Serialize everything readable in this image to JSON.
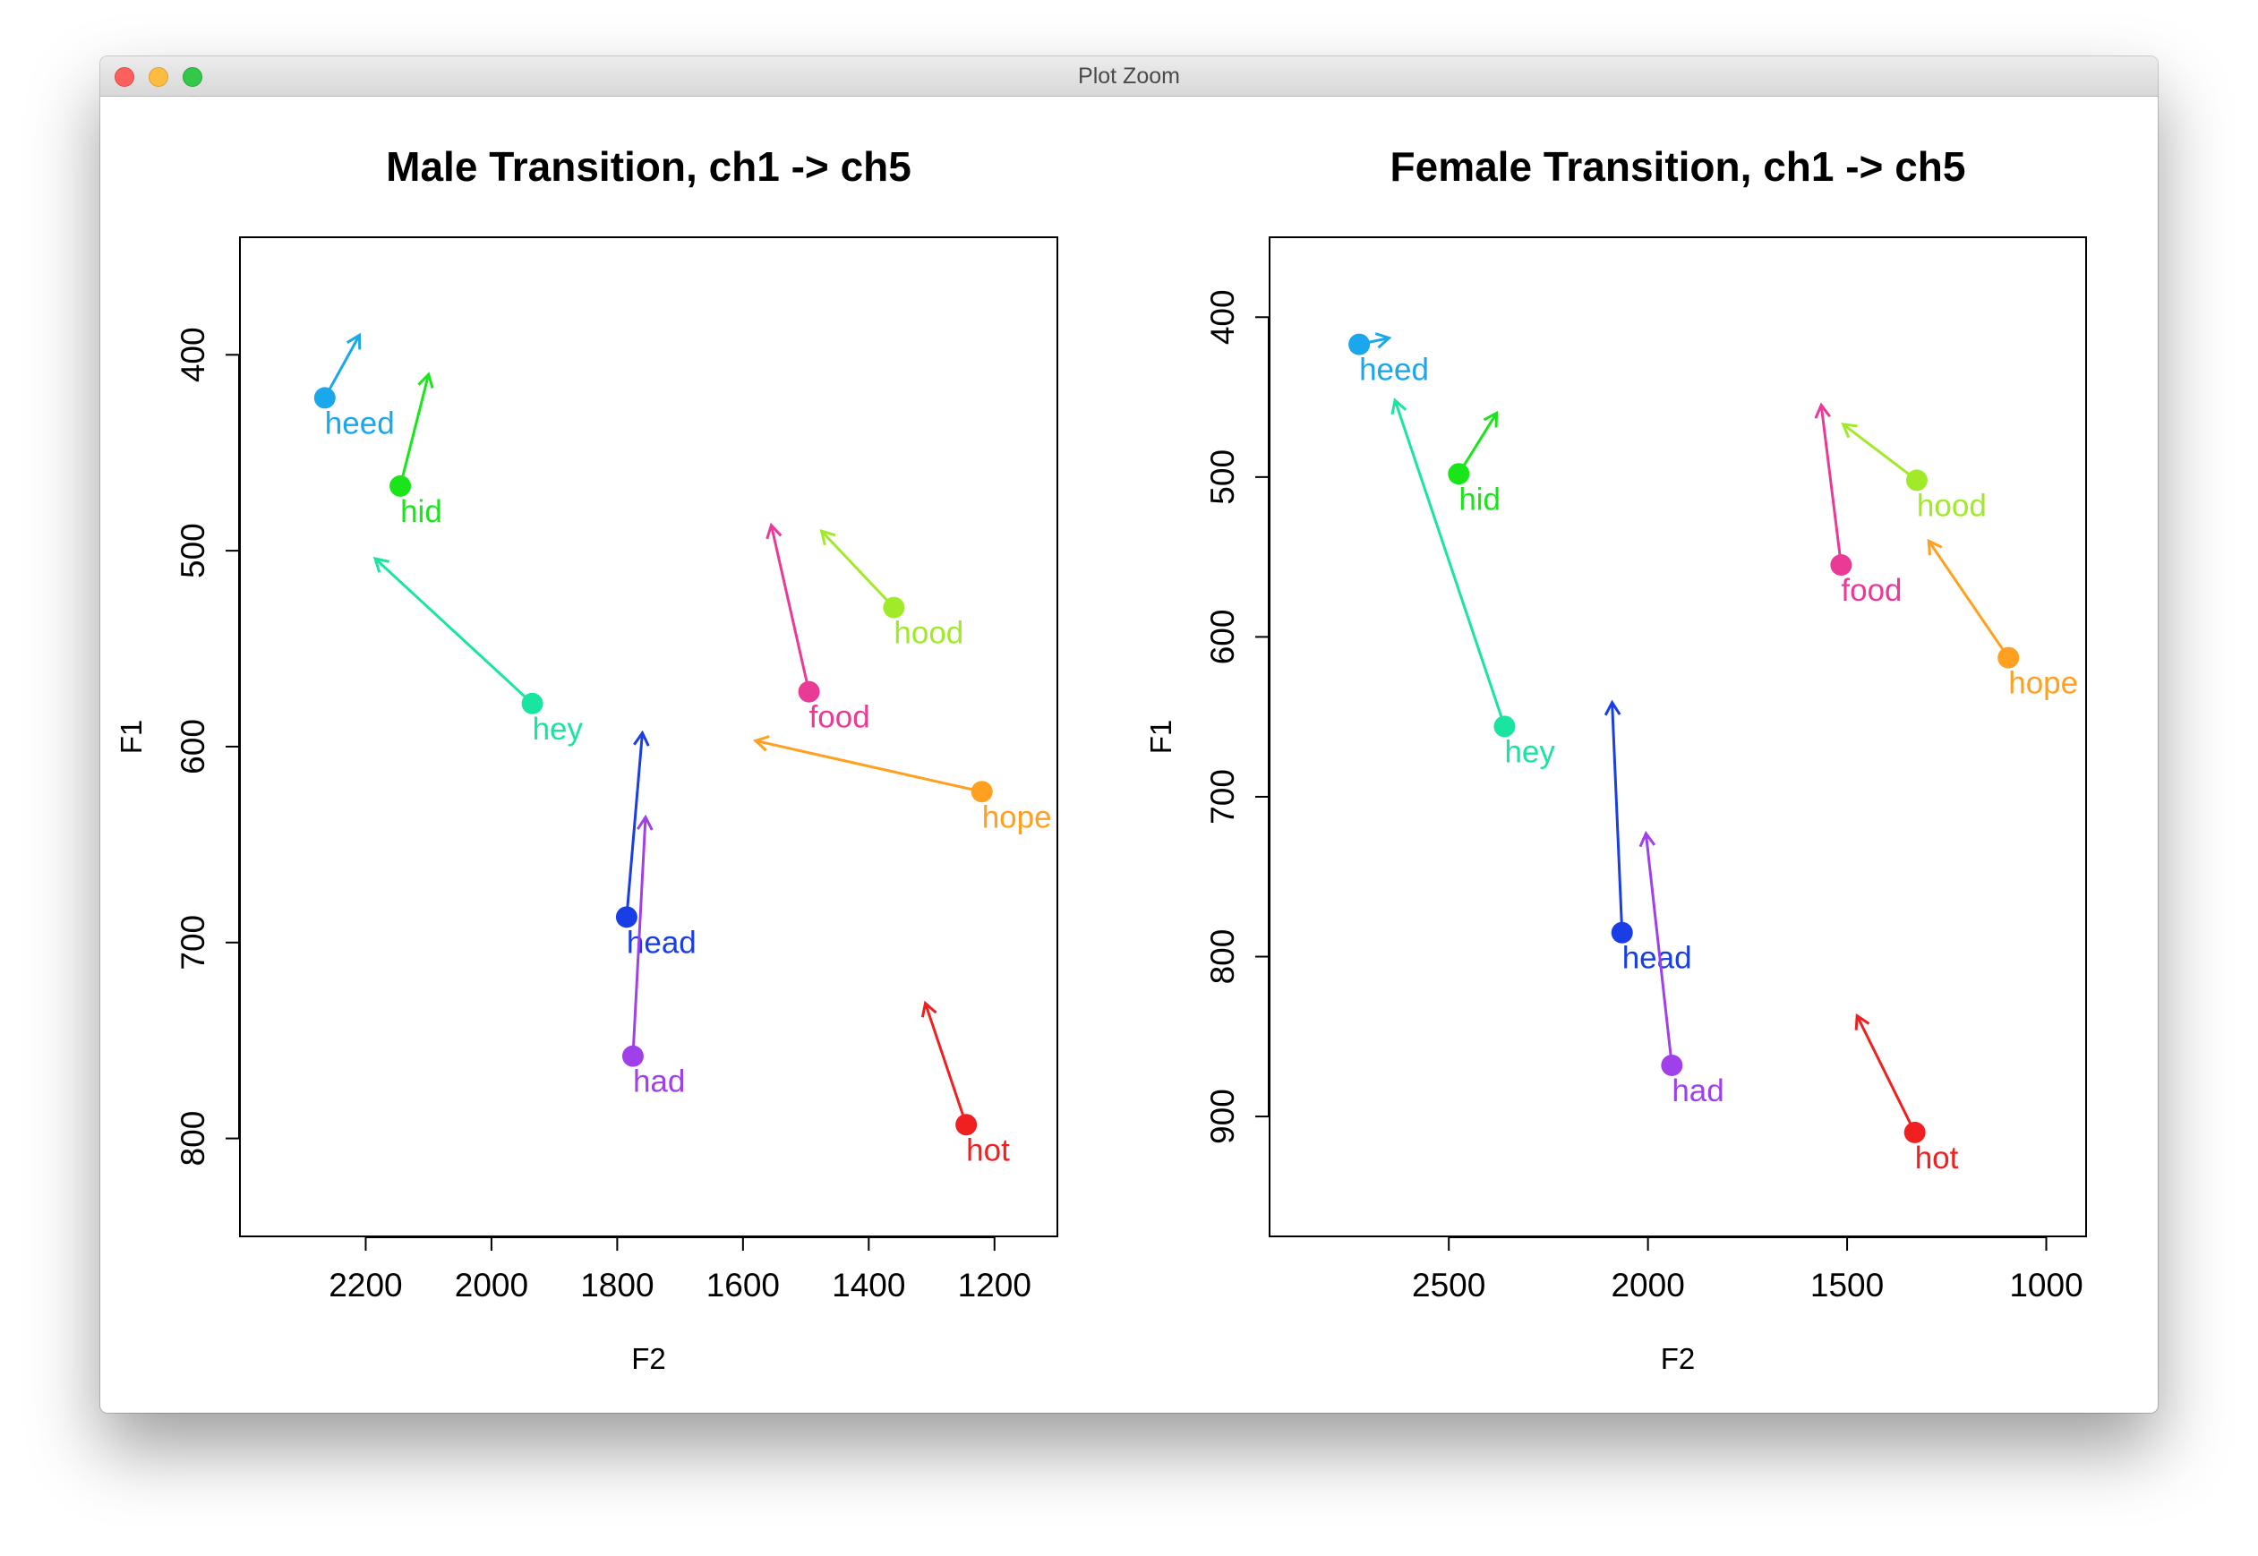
{
  "window": {
    "title": "Plot Zoom"
  },
  "colors": {
    "heed": "#1aa7ec",
    "hid": "#1ae51a",
    "hey": "#1ae5a0",
    "head": "#1a3ee5",
    "had": "#a040ea",
    "food": "#ea3a96",
    "hood": "#a0ea2a",
    "hope": "#ffa020",
    "hot": "#f02020"
  },
  "chart_data": [
    {
      "type": "scatter",
      "title": "Male Transition, ch1 -> ch5",
      "xlabel": "F2",
      "ylabel": "F1",
      "xlim": [
        2400,
        1100
      ],
      "ylim": [
        850,
        340
      ],
      "x_reversed": true,
      "y_reversed": true,
      "xticks": [
        2200,
        2000,
        1800,
        1600,
        1400,
        1200
      ],
      "yticks": [
        400,
        500,
        600,
        700,
        800
      ],
      "points": [
        {
          "label": "heed",
          "x": 2265,
          "y": 422,
          "x_end": 2210,
          "y_end": 390
        },
        {
          "label": "hid",
          "x": 2145,
          "y": 467,
          "x_end": 2100,
          "y_end": 410
        },
        {
          "label": "hey",
          "x": 1935,
          "y": 578,
          "x_end": 2185,
          "y_end": 504
        },
        {
          "label": "head",
          "x": 1785,
          "y": 687,
          "x_end": 1760,
          "y_end": 593
        },
        {
          "label": "had",
          "x": 1775,
          "y": 758,
          "x_end": 1755,
          "y_end": 636
        },
        {
          "label": "food",
          "x": 1495,
          "y": 572,
          "x_end": 1555,
          "y_end": 487
        },
        {
          "label": "hood",
          "x": 1360,
          "y": 529,
          "x_end": 1475,
          "y_end": 490
        },
        {
          "label": "hope",
          "x": 1220,
          "y": 623,
          "x_end": 1580,
          "y_end": 597
        },
        {
          "label": "hot",
          "x": 1245,
          "y": 793,
          "x_end": 1310,
          "y_end": 731
        }
      ]
    },
    {
      "type": "scatter",
      "title": "Female Transition, ch1 -> ch5",
      "xlabel": "F2",
      "ylabel": "F1",
      "xlim": [
        2950,
        900
      ],
      "ylim": [
        975,
        350
      ],
      "x_reversed": true,
      "y_reversed": true,
      "xticks": [
        2500,
        2000,
        1500,
        1000
      ],
      "yticks": [
        400,
        500,
        600,
        700,
        800,
        900
      ],
      "points": [
        {
          "label": "heed",
          "x": 2725,
          "y": 417,
          "x_end": 2650,
          "y_end": 413
        },
        {
          "label": "hid",
          "x": 2475,
          "y": 498,
          "x_end": 2380,
          "y_end": 460
        },
        {
          "label": "hey",
          "x": 2360,
          "y": 656,
          "x_end": 2635,
          "y_end": 452
        },
        {
          "label": "head",
          "x": 2065,
          "y": 785,
          "x_end": 2090,
          "y_end": 641
        },
        {
          "label": "had",
          "x": 1940,
          "y": 868,
          "x_end": 2005,
          "y_end": 723
        },
        {
          "label": "food",
          "x": 1515,
          "y": 555,
          "x_end": 1565,
          "y_end": 455
        },
        {
          "label": "hood",
          "x": 1325,
          "y": 502,
          "x_end": 1510,
          "y_end": 467
        },
        {
          "label": "hope",
          "x": 1095,
          "y": 613,
          "x_end": 1295,
          "y_end": 540
        },
        {
          "label": "hot",
          "x": 1330,
          "y": 910,
          "x_end": 1475,
          "y_end": 837
        }
      ]
    }
  ]
}
